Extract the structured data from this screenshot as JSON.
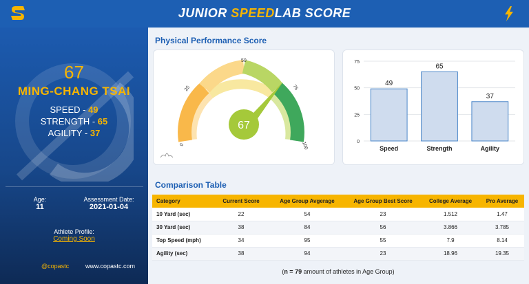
{
  "header": {
    "title_pre": "JUNIOR ",
    "title_speed": "SPEED",
    "title_lab": "LAB",
    "title_post": " SCORE"
  },
  "sidebar": {
    "overall_score": "67",
    "athlete_name": "MING-CHANG TSAI",
    "stats": [
      {
        "label": "SPEED - ",
        "value": "49"
      },
      {
        "label": "STRENGTH - ",
        "value": "65"
      },
      {
        "label": "AGILITY - ",
        "value": "37"
      }
    ],
    "age_label": "Age:",
    "age_value": "11",
    "assessment_label": "Assessment Date:",
    "assessment_value": "2021-01-04",
    "profile_label": "Athlete Profile:",
    "profile_link": "Coming Soon",
    "social_handle": "@copastc",
    "website": "www.copastc.com"
  },
  "performance": {
    "title": "Physical Performance Score",
    "gauge_value": "67",
    "gauge_ticks": [
      "0",
      "25",
      "50",
      "75",
      "100"
    ]
  },
  "chart_data": {
    "type": "bar",
    "categories": [
      "Speed",
      "Strength",
      "Agility"
    ],
    "values": [
      49,
      65,
      37
    ],
    "ylim": [
      0,
      75
    ],
    "yticks": [
      "0",
      "25",
      "50",
      "75"
    ],
    "grid": true,
    "bar_fill": "#cfdcee",
    "bar_stroke": "#4a86c8"
  },
  "comparison": {
    "title": "Comparison Table",
    "headers": [
      "Category",
      "Current Score",
      "Age Group Avgerage",
      "Age Group Best Score",
      "College Average",
      "Pro Average"
    ],
    "rows": [
      [
        "10 Yard (sec)",
        "22",
        "54",
        "23",
        "1.512",
        "1.47"
      ],
      [
        "30 Yard (sec)",
        "38",
        "84",
        "56",
        "3.866",
        "3.785"
      ],
      [
        "Top Speed (mph)",
        "34",
        "95",
        "55",
        "7.9",
        "8.14"
      ],
      [
        "Agility (sec)",
        "38",
        "94",
        "23",
        "18.96",
        "19.35"
      ]
    ],
    "note_pre": "(",
    "note_n": "n = 79",
    "note_post": " amount of athletes in Age Group)"
  },
  "colors": {
    "brand_blue": "#1d5fb3",
    "accent_gold": "#f7b500",
    "gauge_green": "#a5c93a"
  }
}
